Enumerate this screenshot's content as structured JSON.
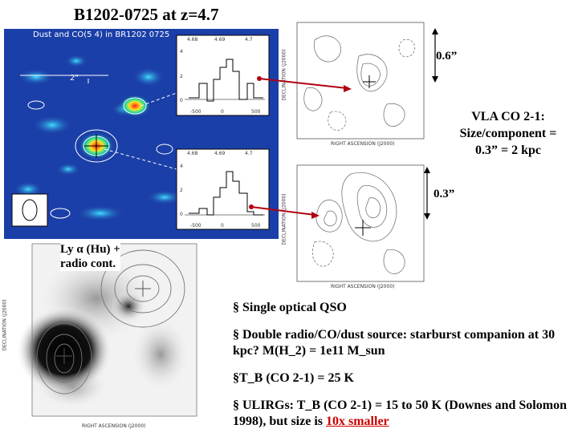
{
  "title": "B1202-0725 at z=4.7",
  "map": {
    "title": "Dust and CO(5 4) in BR1202 0725",
    "scale_label": "2\"",
    "spectrum_top": {
      "z_ticks": [
        "4.68",
        "4.69",
        "4.7"
      ],
      "y_ticks": [
        "4",
        "2",
        "0"
      ],
      "x_ticks": [
        "-500",
        "0",
        "500"
      ]
    },
    "spectrum_bottom": {
      "z_ticks": [
        "4.68",
        "4.69",
        "4.7"
      ],
      "y_ticks": [
        "4",
        "2",
        "0"
      ],
      "x_ticks": [
        "-500",
        "0",
        "500"
      ]
    }
  },
  "vla_top": {
    "dec_label": "DECLINATION (J2000)",
    "ra_label": "RIGHT ASCENSION (J2000)",
    "scale": "0.6”"
  },
  "vla_caption": [
    "VLA CO 2-1:",
    "Size/component =",
    "0.3” = 2 kpc"
  ],
  "vla_bottom": {
    "dec_label": "DECLINATION (J2000)",
    "ra_label": "RIGHT ASCENSION (J2000)",
    "scale": "0.3”"
  },
  "optical": {
    "label_line1": "Ly α (Hu) +",
    "label_line2": "radio cont.",
    "dec_label": "DECLINATION (J2000)",
    "ra_label": "RIGHT ASCENSION (J2000)"
  },
  "bullets": {
    "b1": "§ Single optical QSO",
    "b2": "§ Double radio/CO/dust source: starburst companion at 30 kpc? M(H_2) = 1e11 M_sun",
    "b3": "§T_B (CO 2-1) = 25 K",
    "b4_pre": "§ ULIRGs: T_B (CO 2-1) = 15 to 50 K (Downes and Solomon 1998), but size is ",
    "b4_red": "10x smaller"
  },
  "colors": {
    "map_bg": "#1b3fa8",
    "arrow": "#b00010",
    "highlight": "#cc0000"
  }
}
